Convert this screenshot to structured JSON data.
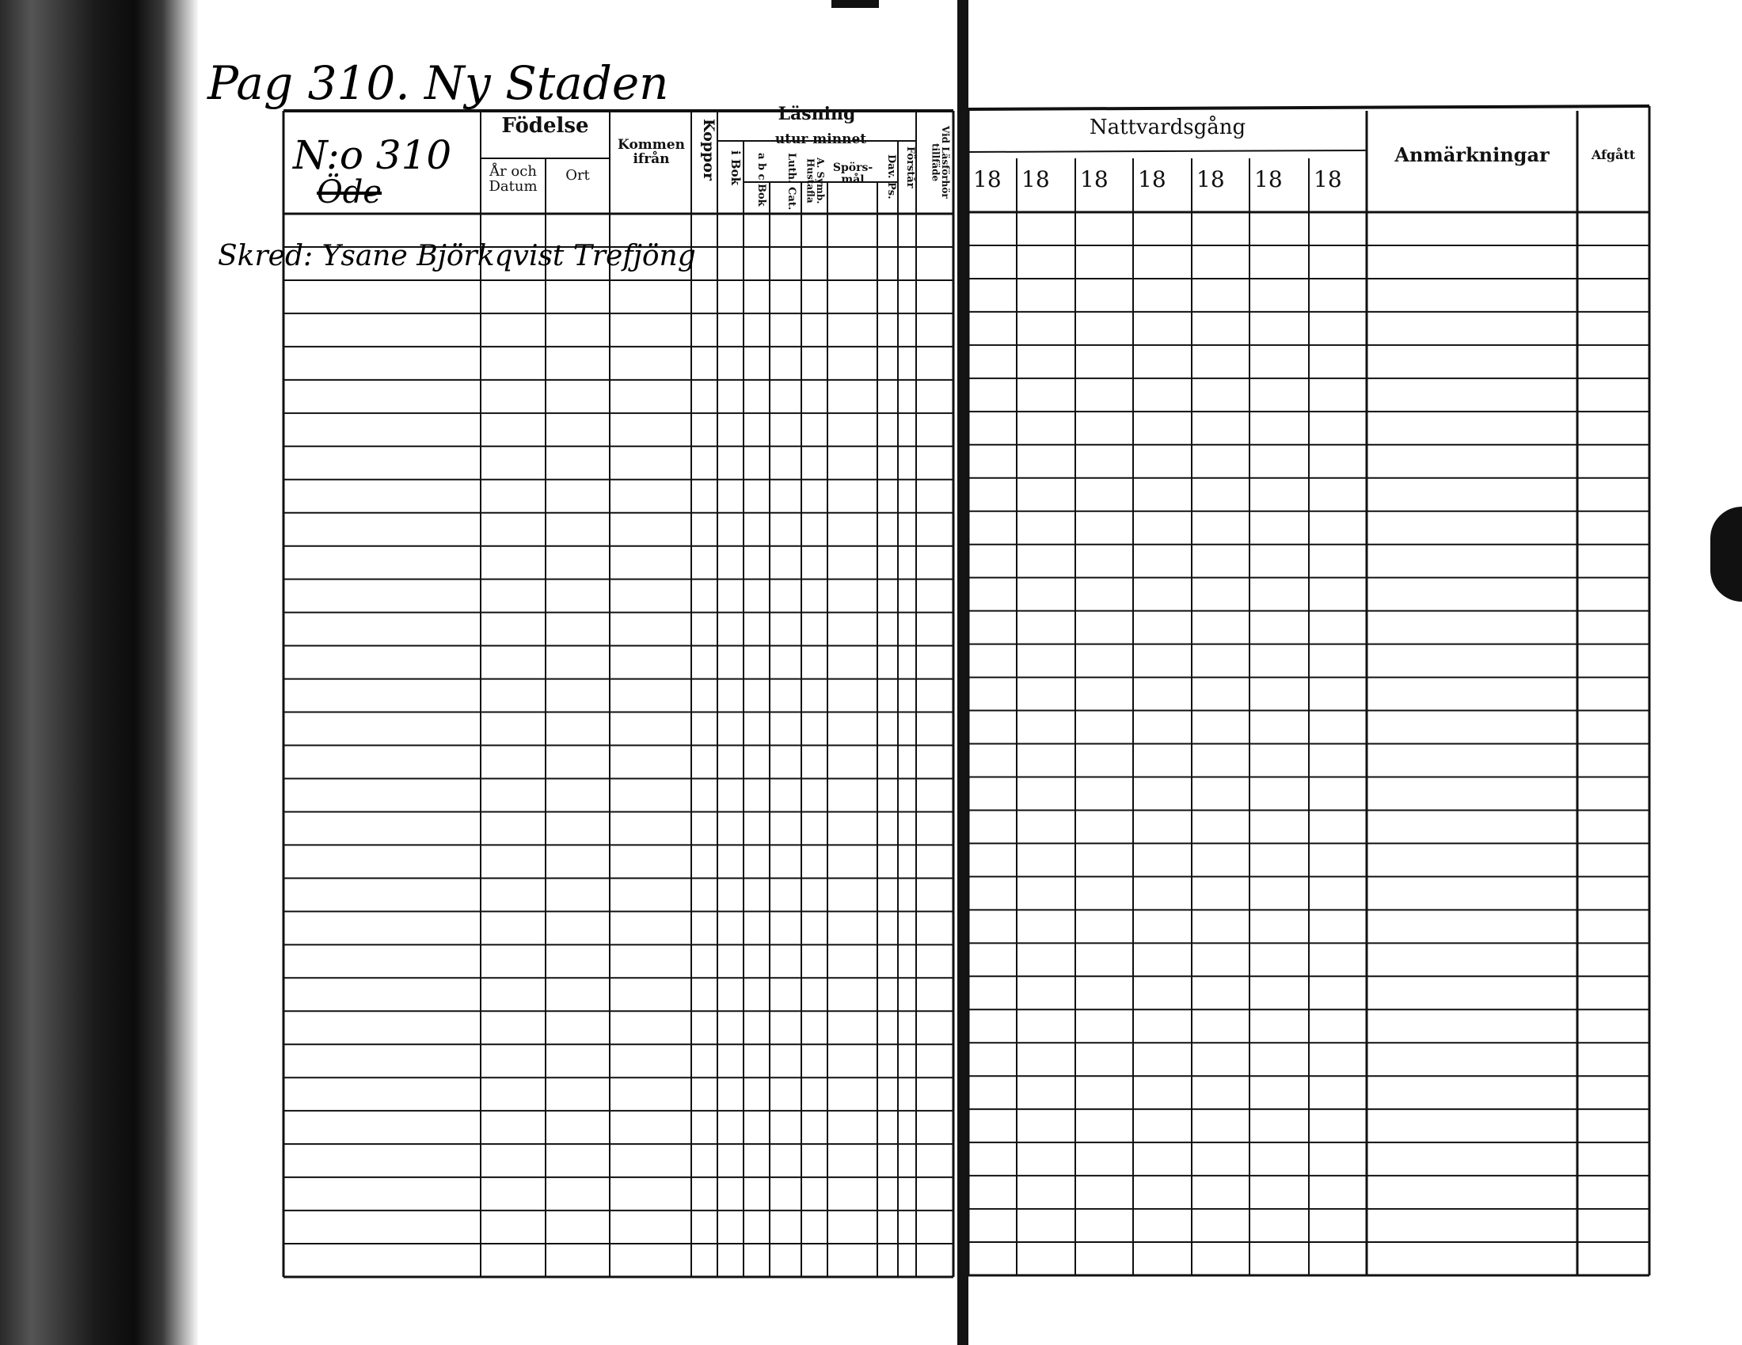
{
  "handwriting": {
    "page_title": "Pag 310. Ny Staden",
    "number": "N:o 310",
    "place": "Öde",
    "entry": "Skred: Ysane Björkqvist Trefjöng"
  },
  "left_page": {
    "fodelse": "Födelse",
    "ar_och_datum": "År och Datum",
    "ort": "Ort",
    "kommen_ifran": "Kommen ifrån",
    "koppor": "Koppor",
    "lasning": "Läsning",
    "i_bok": "i Bok",
    "utur_minnet": "utur minnet",
    "abc_bok": "a b c Bok",
    "luth_cat": "Luth. Cat.",
    "a_symb": "A. Symb. Hustafla",
    "sporsmal": "Spörs-mål",
    "dav_ps": "Dav. Ps.",
    "forstar": "Förstår",
    "vid_lasforhor": "Vid Läsförhör tillfäde"
  },
  "right_page": {
    "nattvardsgang": "Nattvardsgång",
    "years": [
      "18",
      "18",
      "18",
      "18",
      "18",
      "18",
      "18"
    ],
    "anmarkningar": "Anmärkningar",
    "afgatt": "Afgått"
  }
}
